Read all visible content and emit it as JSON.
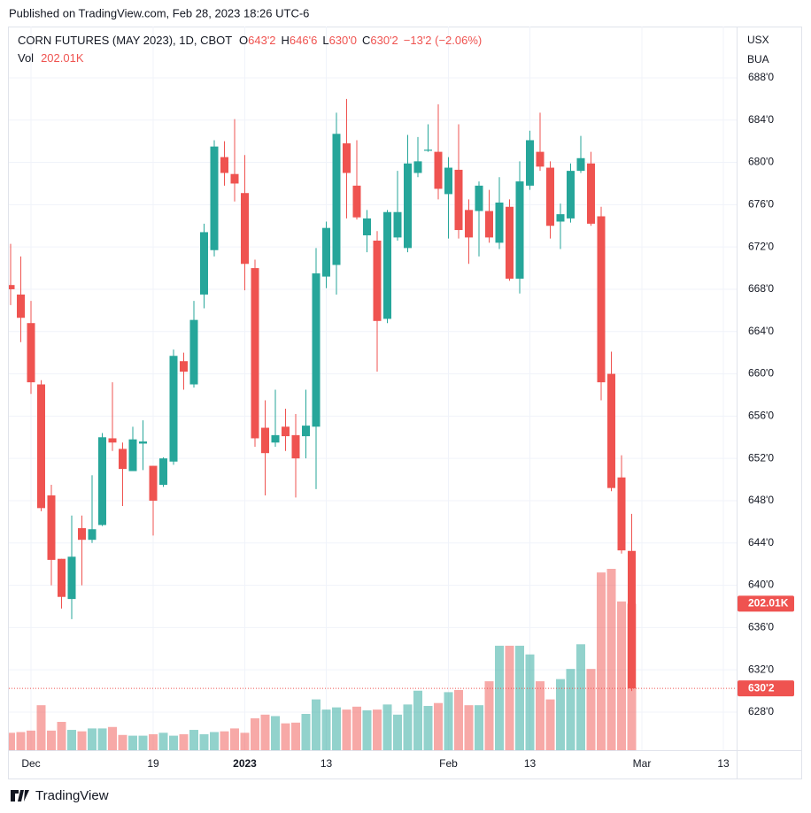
{
  "header": {
    "published": "Published on TradingView.com, Feb 28, 2023 18:26 UTC-6",
    "brand": "TradingView"
  },
  "legend": {
    "symbol": "CORN FUTURES (MAY 2023), 1D, CBOT",
    "open": {
      "key": "O",
      "value": "643'2"
    },
    "high": {
      "key": "H",
      "value": "646'6"
    },
    "low": {
      "key": "L",
      "value": "630'0"
    },
    "close": {
      "key": "C",
      "value": "630'2"
    },
    "change": "−13'2 (−2.06%)",
    "volume": {
      "key": "Vol",
      "value": "202.01K"
    }
  },
  "chart_data": {
    "type": "candlestick",
    "currency": "USX",
    "unit": "BUA",
    "up_color": "#26a69a",
    "down_color": "#ef5350",
    "grid": true,
    "xlim": [
      0,
      71.4
    ],
    "xticks": [
      {
        "value": 2,
        "label": "Dec"
      },
      {
        "value": 14,
        "label": "19"
      },
      {
        "value": 23,
        "label": "2023"
      },
      {
        "value": 31,
        "label": "13"
      },
      {
        "value": 43,
        "label": "Feb"
      },
      {
        "value": 51,
        "label": "13"
      },
      {
        "value": 62,
        "label": "Mar"
      },
      {
        "value": 70,
        "label": "13"
      }
    ],
    "ylim": [
      624.4,
      692.85
    ],
    "yticks": [
      {
        "value": 628,
        "label": "628'0"
      },
      {
        "value": 632,
        "label": "632'0"
      },
      {
        "value": 636,
        "label": "636'0"
      },
      {
        "value": 640,
        "label": "640'0"
      },
      {
        "value": 644,
        "label": "644'0"
      },
      {
        "value": 648,
        "label": "648'0"
      },
      {
        "value": 652,
        "label": "652'0"
      },
      {
        "value": 656,
        "label": "656'0"
      },
      {
        "value": 660,
        "label": "660'0"
      },
      {
        "value": 664,
        "label": "664'0"
      },
      {
        "value": 668,
        "label": "668'0"
      },
      {
        "value": 672,
        "label": "672'0"
      },
      {
        "value": 676,
        "label": "676'0"
      },
      {
        "value": 680,
        "label": "680'0"
      },
      {
        "value": 684,
        "label": "684'0"
      },
      {
        "value": 688,
        "label": "688'0"
      }
    ],
    "open": [
      668.4,
      667.5,
      664.8,
      659.0,
      648.5,
      642.5,
      638.7,
      645.4,
      644.3,
      645.7,
      653.9,
      652.9,
      650.8,
      653.4,
      651.3,
      649.5,
      651.7,
      661.2,
      659.0,
      667.5,
      671.7,
      680.5,
      678.9,
      677.1,
      670.0,
      654.9,
      653.5,
      655.0,
      654.2,
      654.1,
      655.0,
      669.2,
      670.3,
      681.8,
      677.8,
      673.1,
      672.6,
      665.2,
      672.9,
      671.9,
      679.0,
      681.1,
      681.0,
      677.0,
      679.3,
      675.5,
      675.4,
      675.4,
      672.4,
      675.8,
      669.0,
      677.8,
      681.0,
      679.5,
      674.4,
      674.7,
      679.2,
      679.9,
      674.9,
      660.0,
      650.2,
      643.25
    ],
    "high": [
      672.3,
      671.1,
      666.9,
      659.4,
      649.5,
      642.5,
      646.6,
      646.6,
      650.4,
      654.4,
      659.2,
      653.5,
      655.0,
      655.6,
      651.3,
      652.1,
      662.3,
      662.0,
      666.9,
      674.2,
      682.1,
      682.0,
      684.1,
      680.7,
      670.8,
      657.5,
      658.5,
      656.7,
      656.2,
      658.5,
      671.9,
      674.4,
      684.7,
      686.0,
      682.1,
      675.5,
      673.5,
      675.5,
      679.2,
      682.6,
      682.4,
      683.6,
      685.5,
      680.5,
      683.6,
      676.5,
      678.2,
      677.4,
      678.6,
      676.5,
      680.1,
      683.0,
      684.7,
      680.1,
      676.1,
      679.9,
      682.5,
      681.0,
      675.8,
      662.1,
      652.3,
      646.75
    ],
    "low": [
      666.5,
      663.0,
      658.1,
      647.0,
      640.0,
      637.8,
      636.8,
      640.0,
      644.0,
      645.6,
      652.7,
      647.5,
      650.8,
      650.9,
      644.7,
      649.3,
      651.4,
      658.5,
      658.7,
      666.2,
      671.1,
      677.8,
      676.3,
      667.9,
      653.1,
      648.5,
      653.1,
      652.7,
      648.3,
      652.0,
      649.1,
      668.1,
      667.5,
      674.7,
      674.6,
      671.5,
      660.2,
      664.8,
      672.6,
      671.5,
      678.6,
      681.0,
      676.5,
      672.8,
      672.8,
      670.4,
      671.1,
      672.4,
      671.8,
      668.8,
      667.6,
      677.4,
      679.2,
      672.8,
      671.8,
      674.3,
      679.0,
      674.0,
      657.5,
      648.9,
      643.0,
      630.0
    ],
    "close": [
      668.0,
      665.3,
      659.2,
      647.3,
      642.4,
      638.9,
      642.7,
      644.3,
      645.3,
      654.0,
      653.5,
      651.0,
      653.8,
      653.6,
      648.0,
      652.0,
      661.7,
      660.2,
      665.1,
      673.4,
      681.5,
      679.0,
      678.0,
      670.4,
      653.9,
      652.5,
      654.2,
      654.1,
      652.0,
      655.1,
      669.5,
      673.8,
      682.7,
      679.0,
      674.8,
      674.7,
      665.0,
      675.3,
      675.3,
      679.9,
      680.1,
      681.2,
      677.5,
      679.5,
      673.6,
      672.9,
      677.8,
      672.9,
      676.2,
      669.0,
      678.2,
      682.1,
      679.6,
      674.0,
      675.1,
      679.2,
      680.4,
      674.2,
      659.2,
      649.2,
      643.3,
      630.25
    ],
    "volume": [
      24,
      25,
      27,
      62,
      27,
      39,
      28,
      26,
      30,
      30,
      32,
      21,
      20,
      20,
      22,
      24,
      20,
      22,
      28,
      22,
      25,
      26,
      30,
      24,
      44,
      49,
      47,
      37,
      38,
      50,
      70,
      56,
      59,
      56,
      60,
      55,
      56,
      63,
      49,
      63,
      82,
      61,
      65,
      80,
      83,
      62,
      62,
      95,
      144,
      144,
      144,
      132,
      95,
      70,
      98,
      112,
      146,
      112,
      245,
      250,
      205,
      202.01
    ],
    "volume_label": "202.01K",
    "last_price": {
      "value": 630.25,
      "label": "630'2"
    }
  }
}
